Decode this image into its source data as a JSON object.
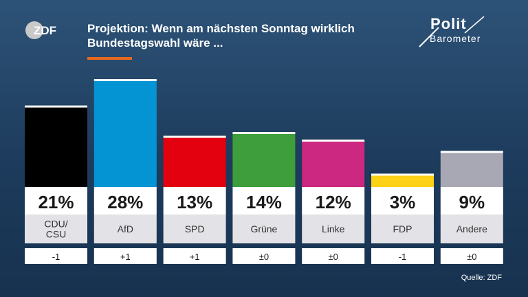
{
  "brand": {
    "logo_text": "ZDF",
    "polit_word1": "Polit",
    "polit_word2": "Barometer"
  },
  "header": {
    "title_line1": "Projektion: Wenn am nächsten Sonntag wirklich",
    "title_line2": "Bundestagswahl wäre ..."
  },
  "chart_data": {
    "type": "bar",
    "title": "Projektion: Wenn am nächsten Sonntag wirklich Bundestagswahl wäre ...",
    "categories": [
      "CDU/\nCSU",
      "AfD",
      "SPD",
      "Grüne",
      "Linke",
      "FDP",
      "Andere"
    ],
    "values": [
      21,
      28,
      13,
      14,
      12,
      3,
      9
    ],
    "value_labels": [
      "21%",
      "28%",
      "13%",
      "14%",
      "12%",
      "3%",
      "9%"
    ],
    "changes": [
      "-1",
      "+1",
      "+1",
      "±0",
      "±0",
      "-1",
      "±0"
    ],
    "colors": [
      "#000000",
      "#0494d4",
      "#e3000f",
      "#3f9e3c",
      "#cc2781",
      "#fcd116",
      "#a8a8b4"
    ],
    "unit": "%"
  },
  "footer": {
    "source": "Quelle: ZDF"
  }
}
